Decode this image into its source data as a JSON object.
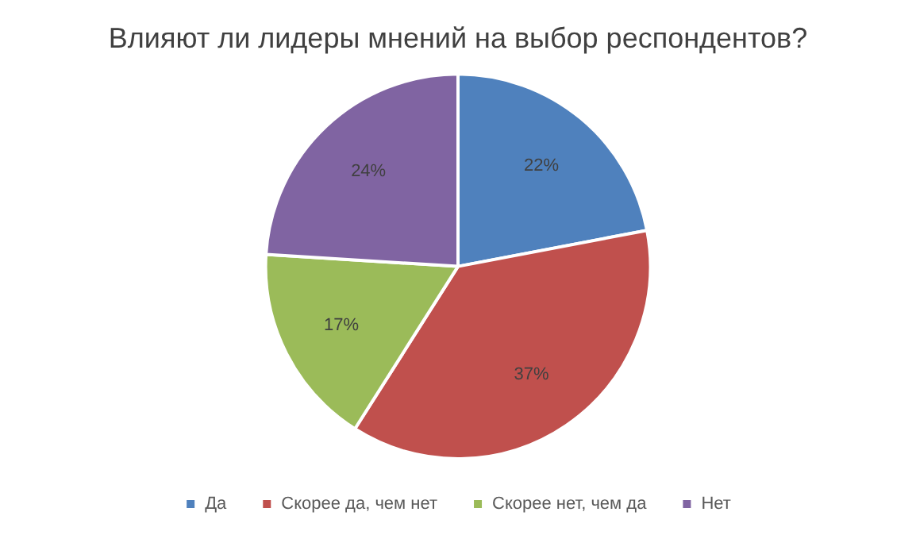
{
  "chart_data": {
    "type": "pie",
    "title": "Влияют ли лидеры мнений на выбор респондентов?",
    "categories": [
      "Да",
      "Скорее да, чем нет",
      "Скорее нет, чем да",
      "Нет"
    ],
    "values": [
      22,
      37,
      17,
      24
    ],
    "colors": [
      "#4f81bd",
      "#c0504d",
      "#9bbb59",
      "#8064a2"
    ],
    "value_labels": [
      "22%",
      "37%",
      "17%",
      "24%"
    ],
    "legend": "bottom"
  }
}
